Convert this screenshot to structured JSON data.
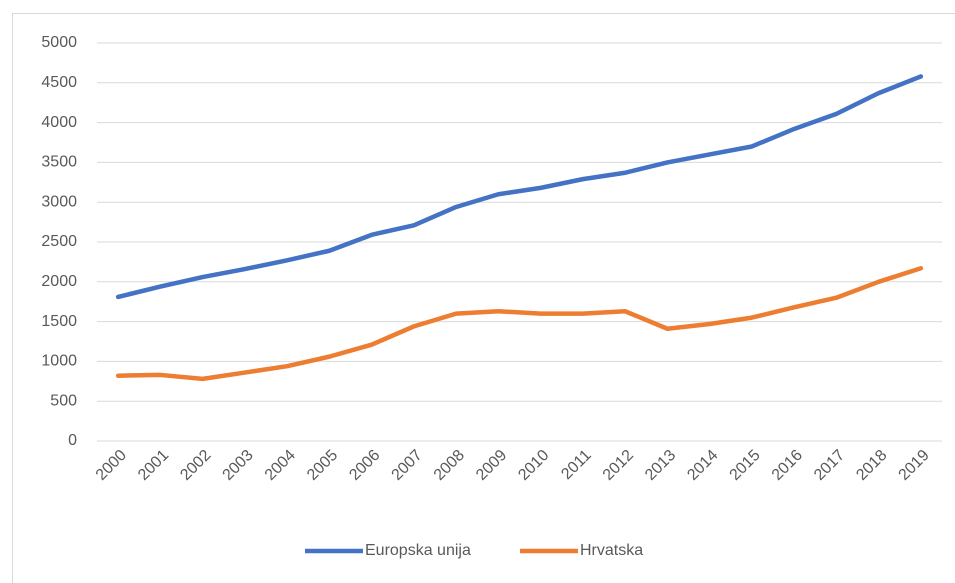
{
  "chart_data": {
    "type": "line",
    "categories": [
      "2000",
      "2001",
      "2002",
      "2003",
      "2004",
      "2005",
      "2006",
      "2007",
      "2008",
      "2009",
      "2010",
      "2011",
      "2012",
      "2013",
      "2014",
      "2015",
      "2016",
      "2017",
      "2018",
      "2019"
    ],
    "series": [
      {
        "name": "Europska unija",
        "color": "#4472c4",
        "values": [
          1810,
          1940,
          2060,
          2160,
          2270,
          2390,
          2590,
          2710,
          2940,
          3100,
          3180,
          3290,
          3370,
          3500,
          3600,
          3700,
          3920,
          4110,
          4370,
          4580
        ]
      },
      {
        "name": "Hrvatska",
        "color": "#ed7d31",
        "values": [
          820,
          830,
          780,
          860,
          940,
          1060,
          1210,
          1440,
          1600,
          1630,
          1600,
          1600,
          1630,
          1410,
          1470,
          1550,
          1680,
          1800,
          2000,
          2170
        ]
      }
    ],
    "ylim": [
      0,
      5000
    ],
    "yticks": [
      0,
      500,
      1000,
      1500,
      2000,
      2500,
      3000,
      3500,
      4000,
      4500,
      5000
    ],
    "grid": true,
    "legend": "bottom"
  }
}
